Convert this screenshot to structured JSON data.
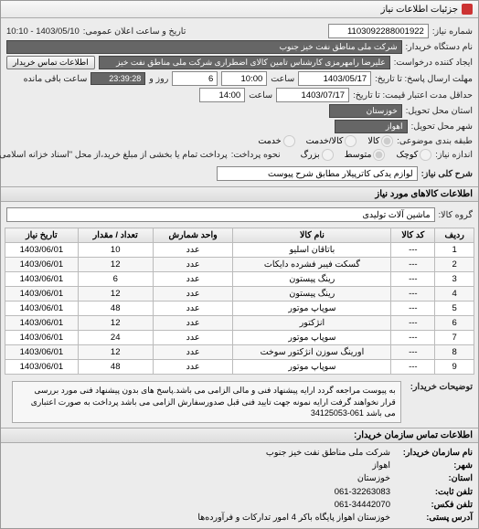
{
  "titlebar": {
    "text": "جزئیات اطلاعات نیاز"
  },
  "top": {
    "req_no_label": "شماره نیاز:",
    "req_no": "1103092288001922",
    "date_label": "تاریخ و ساعت اعلان عمومی:",
    "date_value": "1403/05/10 - 10:10",
    "buyer_label": "نام دستگاه خریدار:",
    "buyer_value": "شرکت ملی مناطق نفت خیز جنوب",
    "creator_label": "ایجاد کننده درخواست:",
    "creator_value": "علیرضا رامهرمزی کارشناس تامین کالای اضطراری شرکت ملی مناطق نفت خیز",
    "contact_btn": "اطلاعات تماس خریدار",
    "deadline_send_label": "مهلت ارسال پاسخ: تا تاریخ:",
    "deadline_send_date": "1403/05/17",
    "time_label": "ساعت",
    "deadline_send_time": "10:00",
    "remain_days": "6",
    "remain_days_label": "روز و",
    "remain_time": "23:39:28",
    "remain_suffix": "ساعت باقی مانده",
    "deadline_accept_label": "حداقل مدت اعتبار قیمت: تا تاریخ:",
    "deadline_accept_date": "1403/07/17",
    "deadline_accept_time": "14:00",
    "province_label": "استان محل تحویل:",
    "province_value": "خوزستان",
    "city_label": "شهر محل تحویل:",
    "city_value": "اهواز",
    "budget_label": "طبقه بندی موضوعی:",
    "budget_opts": {
      "a": "کالا",
      "b": "کالا/خدمت",
      "c": "خدمت"
    },
    "size_label": "اندازه نیاز:",
    "size_opts": {
      "a": "کوچک",
      "b": "متوسط",
      "c": "بزرگ"
    },
    "pay_label": "نحوه پرداخت:",
    "pay_text": "پرداخت تمام یا بخشی از مبلغ خرید،از محل \"اسناد خزانه اسلامی\" خواهد بود.",
    "desc_label": "شرح کلی نیاز:",
    "desc_value": "لوازم یدکی کاترپیلار مطابق شرح پیوست"
  },
  "items_header": "اطلاعات کالاهای مورد نیاز",
  "group_label": "گروه کالا:",
  "group_value": "ماشین آلات تولیدی",
  "table": {
    "columns": [
      "ردیف",
      "کد کالا",
      "نام کالا",
      "واحد شمارش",
      "تعداد / مقدار",
      "تاریخ نیاز"
    ],
    "rows": [
      [
        "1",
        "---",
        "باتاقان اسلیو",
        "عدد",
        "10",
        "1403/06/01"
      ],
      [
        "2",
        "---",
        "گسکت فیبر فشرده دایکات",
        "عدد",
        "12",
        "1403/06/01"
      ],
      [
        "3",
        "---",
        "رینگ پیستون",
        "عدد",
        "6",
        "1403/06/01"
      ],
      [
        "4",
        "---",
        "رینگ پیستون",
        "عدد",
        "12",
        "1403/06/01"
      ],
      [
        "5",
        "---",
        "سوپاپ موتور",
        "عدد",
        "48",
        "1403/06/01"
      ],
      [
        "6",
        "---",
        "انژکتور",
        "عدد",
        "12",
        "1403/06/01"
      ],
      [
        "7",
        "---",
        "سوپاپ موتور",
        "عدد",
        "24",
        "1403/06/01"
      ],
      [
        "8",
        "---",
        "اورینگ سوزن انژکتور سوخت",
        "عدد",
        "12",
        "1403/06/01"
      ],
      [
        "9",
        "---",
        "سوپاپ موتور",
        "عدد",
        "48",
        "1403/06/01"
      ]
    ]
  },
  "note_label": "توضیحات خریدار:",
  "note_text": "به پیوست مراجعه گردد ارایه پیشنهاد فنی و مالی الزامی می باشد.پاسخ های بدون پیشنهاد فنی مورد بررسی قرار نخواهند گرفت ارایه نمونه جهت تایید فنی قبل صدورسفارش الزامی می باشد پرداخت به صورت اعتباری می باشد 061-34125053",
  "contact_header": "اطلاعات تماس سازمان خریدار:",
  "footer": {
    "org_label": "نام سازمان خریدار:",
    "org_value": "شرکت ملی مناطق نفت خیز جنوب",
    "city_label": "شهر:",
    "city_value": "اهواز",
    "prov_label": "استان:",
    "prov_value": "خوزستان",
    "phone_label": "تلفن ثابت:",
    "phone_value": "061-32263083",
    "fax_label": "تلفن فکس:",
    "fax_value": "061-34442070",
    "addr_label": "آدرس پستی:",
    "addr_value": "خوزستان اهواز پایگاه باکر 4 امور تدارکات و فرآورده‌ها"
  }
}
